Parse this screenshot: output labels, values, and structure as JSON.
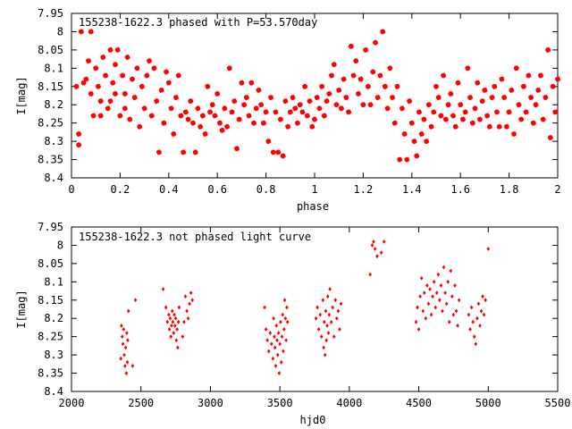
{
  "colors": {
    "points": "#ff0000",
    "axes": "#000000",
    "background": "#ffffff"
  },
  "chart_data": [
    {
      "type": "scatter",
      "title": "155238-1622.3 phased with P=53.570day",
      "xlabel": "phase",
      "ylabel": "I[mag]",
      "xlim": [
        0,
        2
      ],
      "ylim": [
        7.95,
        8.4
      ],
      "y_inverted": true,
      "grid": false,
      "marker": "star",
      "xticks": [
        "0",
        "0.2",
        "0.4",
        "0.6",
        "0.8",
        "1",
        "1.2",
        "1.4",
        "1.6",
        "1.8",
        "2"
      ],
      "yticks": [
        "7.95",
        "8",
        "8.05",
        "8.1",
        "8.15",
        "8.2",
        "8.25",
        "8.3",
        "8.35",
        "8.4"
      ],
      "points": [
        [
          0.02,
          8.15
        ],
        [
          0.03,
          8.28
        ],
        [
          0.03,
          8.31
        ],
        [
          0.04,
          8.0
        ],
        [
          0.05,
          8.14
        ],
        [
          0.06,
          8.13
        ],
        [
          0.07,
          8.08
        ],
        [
          0.08,
          8.0
        ],
        [
          0.08,
          8.17
        ],
        [
          0.09,
          8.23
        ],
        [
          0.1,
          8.1
        ],
        [
          0.11,
          8.15
        ],
        [
          0.12,
          8.19
        ],
        [
          0.12,
          8.23
        ],
        [
          0.13,
          8.07
        ],
        [
          0.14,
          8.12
        ],
        [
          0.15,
          8.21
        ],
        [
          0.16,
          8.05
        ],
        [
          0.16,
          8.19
        ],
        [
          0.17,
          8.14
        ],
        [
          0.18,
          8.17
        ],
        [
          0.18,
          8.09
        ],
        [
          0.19,
          8.05
        ],
        [
          0.2,
          8.23
        ],
        [
          0.21,
          8.12
        ],
        [
          0.22,
          8.21
        ],
        [
          0.22,
          8.17
        ],
        [
          0.23,
          8.07
        ],
        [
          0.24,
          8.24
        ],
        [
          0.25,
          8.13
        ],
        [
          0.26,
          8.18
        ],
        [
          0.27,
          8.1
        ],
        [
          0.28,
          8.26
        ],
        [
          0.29,
          8.15
        ],
        [
          0.3,
          8.21
        ],
        [
          0.31,
          8.12
        ],
        [
          0.32,
          8.08
        ],
        [
          0.33,
          8.23
        ],
        [
          0.34,
          8.1
        ],
        [
          0.35,
          8.19
        ],
        [
          0.36,
          8.33
        ],
        [
          0.37,
          8.16
        ],
        [
          0.38,
          8.25
        ],
        [
          0.39,
          8.11
        ],
        [
          0.4,
          8.14
        ],
        [
          0.41,
          8.21
        ],
        [
          0.42,
          8.28
        ],
        [
          0.43,
          8.18
        ],
        [
          0.44,
          8.12
        ],
        [
          0.45,
          8.23
        ],
        [
          0.46,
          8.33
        ],
        [
          0.47,
          8.22
        ],
        [
          0.48,
          8.24
        ],
        [
          0.49,
          8.19
        ],
        [
          0.5,
          8.25
        ],
        [
          0.51,
          8.33
        ],
        [
          0.52,
          8.21
        ],
        [
          0.53,
          8.26
        ],
        [
          0.54,
          8.23
        ],
        [
          0.55,
          8.28
        ],
        [
          0.56,
          8.15
        ],
        [
          0.57,
          8.22
        ],
        [
          0.58,
          8.2
        ],
        [
          0.59,
          8.23
        ],
        [
          0.6,
          8.17
        ],
        [
          0.61,
          8.25
        ],
        [
          0.62,
          8.27
        ],
        [
          0.63,
          8.21
        ],
        [
          0.64,
          8.26
        ],
        [
          0.65,
          8.1
        ],
        [
          0.66,
          8.22
        ],
        [
          0.67,
          8.19
        ],
        [
          0.68,
          8.32
        ],
        [
          0.69,
          8.24
        ],
        [
          0.7,
          8.14
        ],
        [
          0.71,
          8.2
        ],
        [
          0.72,
          8.18
        ],
        [
          0.73,
          8.23
        ],
        [
          0.74,
          8.14
        ],
        [
          0.75,
          8.25
        ],
        [
          0.76,
          8.21
        ],
        [
          0.77,
          8.16
        ],
        [
          0.78,
          8.2
        ],
        [
          0.79,
          8.25
        ],
        [
          0.8,
          8.22
        ],
        [
          0.81,
          8.3
        ],
        [
          0.82,
          8.18
        ],
        [
          0.83,
          8.33
        ],
        [
          0.84,
          8.22
        ],
        [
          0.85,
          8.33
        ],
        [
          0.86,
          8.24
        ],
        [
          0.87,
          8.34
        ],
        [
          0.88,
          8.19
        ],
        [
          0.89,
          8.26
        ],
        [
          0.9,
          8.22
        ],
        [
          0.91,
          8.18
        ],
        [
          0.92,
          8.21
        ],
        [
          0.93,
          8.25
        ],
        [
          0.94,
          8.2
        ],
        [
          0.95,
          8.22
        ],
        [
          0.96,
          8.15
        ],
        [
          0.97,
          8.23
        ],
        [
          0.98,
          8.19
        ],
        [
          0.99,
          8.26
        ],
        [
          1.0,
          8.24
        ],
        [
          1.01,
          8.18
        ],
        [
          1.02,
          8.21
        ],
        [
          1.03,
          8.15
        ],
        [
          1.04,
          8.23
        ],
        [
          1.05,
          8.19
        ],
        [
          1.06,
          8.17
        ],
        [
          1.07,
          8.12
        ],
        [
          1.08,
          8.09
        ],
        [
          1.09,
          8.2
        ],
        [
          1.1,
          8.16
        ],
        [
          1.11,
          8.21
        ],
        [
          1.12,
          8.13
        ],
        [
          1.13,
          8.18
        ],
        [
          1.14,
          8.22
        ],
        [
          1.15,
          8.04
        ],
        [
          1.16,
          8.12
        ],
        [
          1.17,
          8.08
        ],
        [
          1.18,
          8.17
        ],
        [
          1.19,
          8.13
        ],
        [
          1.2,
          8.2
        ],
        [
          1.21,
          8.05
        ],
        [
          1.22,
          8.15
        ],
        [
          1.23,
          8.2
        ],
        [
          1.24,
          8.11
        ],
        [
          1.25,
          8.03
        ],
        [
          1.26,
          8.18
        ],
        [
          1.27,
          8.12
        ],
        [
          1.28,
          8.0
        ],
        [
          1.29,
          8.15
        ],
        [
          1.3,
          8.21
        ],
        [
          1.31,
          8.1
        ],
        [
          1.32,
          8.18
        ],
        [
          1.33,
          8.25
        ],
        [
          1.34,
          8.15
        ],
        [
          1.35,
          8.35
        ],
        [
          1.36,
          8.21
        ],
        [
          1.37,
          8.28
        ],
        [
          1.38,
          8.35
        ],
        [
          1.39,
          8.19
        ],
        [
          1.4,
          8.25
        ],
        [
          1.41,
          8.3
        ],
        [
          1.42,
          8.34
        ],
        [
          1.43,
          8.22
        ],
        [
          1.44,
          8.28
        ],
        [
          1.45,
          8.24
        ],
        [
          1.46,
          8.3
        ],
        [
          1.47,
          8.2
        ],
        [
          1.48,
          8.26
        ],
        [
          1.49,
          8.22
        ],
        [
          1.5,
          8.15
        ],
        [
          1.51,
          8.18
        ],
        [
          1.52,
          8.23
        ],
        [
          1.53,
          8.12
        ],
        [
          1.54,
          8.24
        ],
        [
          1.55,
          8.2
        ],
        [
          1.56,
          8.17
        ],
        [
          1.57,
          8.23
        ],
        [
          1.58,
          8.26
        ],
        [
          1.59,
          8.14
        ],
        [
          1.6,
          8.2
        ],
        [
          1.61,
          8.24
        ],
        [
          1.62,
          8.22
        ],
        [
          1.63,
          8.1
        ],
        [
          1.64,
          8.18
        ],
        [
          1.65,
          8.25
        ],
        [
          1.66,
          8.21
        ],
        [
          1.67,
          8.14
        ],
        [
          1.68,
          8.24
        ],
        [
          1.69,
          8.19
        ],
        [
          1.7,
          8.16
        ],
        [
          1.71,
          8.23
        ],
        [
          1.72,
          8.26
        ],
        [
          1.73,
          8.18
        ],
        [
          1.74,
          8.15
        ],
        [
          1.75,
          8.22
        ],
        [
          1.76,
          8.26
        ],
        [
          1.77,
          8.13
        ],
        [
          1.78,
          8.18
        ],
        [
          1.79,
          8.26
        ],
        [
          1.8,
          8.22
        ],
        [
          1.81,
          8.16
        ],
        [
          1.82,
          8.28
        ],
        [
          1.83,
          8.1
        ],
        [
          1.84,
          8.2
        ],
        [
          1.85,
          8.24
        ],
        [
          1.86,
          8.15
        ],
        [
          1.87,
          8.22
        ],
        [
          1.88,
          8.12
        ],
        [
          1.89,
          8.18
        ],
        [
          1.9,
          8.25
        ],
        [
          1.91,
          8.2
        ],
        [
          1.92,
          8.16
        ],
        [
          1.93,
          8.12
        ],
        [
          1.94,
          8.24
        ],
        [
          1.95,
          8.18
        ],
        [
          1.96,
          8.05
        ],
        [
          1.97,
          8.29
        ],
        [
          1.98,
          8.15
        ],
        [
          1.99,
          8.22
        ],
        [
          2.0,
          8.13
        ]
      ]
    },
    {
      "type": "scatter",
      "title": "155238-1622.3 not phased light curve",
      "xlabel": "hjd0",
      "ylabel": "I[mag]",
      "xlim": [
        2000,
        5500
      ],
      "ylim": [
        7.95,
        8.4
      ],
      "y_inverted": true,
      "grid": false,
      "marker": "diamond",
      "xticks": [
        "2000",
        "2500",
        "3000",
        "3500",
        "4000",
        "4500",
        "5000",
        "5500"
      ],
      "yticks": [
        "7.95",
        "8",
        "8.05",
        "8.1",
        "8.15",
        "8.2",
        "8.25",
        "8.3",
        "8.35",
        "8.4"
      ],
      "points": [
        [
          2355,
          8.31
        ],
        [
          2360,
          8.22
        ],
        [
          2365,
          8.25
        ],
        [
          2370,
          8.27
        ],
        [
          2375,
          8.23
        ],
        [
          2380,
          8.3
        ],
        [
          2385,
          8.33
        ],
        [
          2390,
          8.28
        ],
        [
          2395,
          8.35
        ],
        [
          2398,
          8.24
        ],
        [
          2402,
          8.32
        ],
        [
          2405,
          8.26
        ],
        [
          2410,
          8.18
        ],
        [
          2440,
          8.33
        ],
        [
          2460,
          8.15
        ],
        [
          2660,
          8.12
        ],
        [
          2680,
          8.17
        ],
        [
          2690,
          8.21
        ],
        [
          2700,
          8.19
        ],
        [
          2705,
          8.23
        ],
        [
          2710,
          8.2
        ],
        [
          2715,
          8.25
        ],
        [
          2720,
          8.22
        ],
        [
          2725,
          8.18
        ],
        [
          2730,
          8.21
        ],
        [
          2735,
          8.24
        ],
        [
          2740,
          8.19
        ],
        [
          2745,
          8.22
        ],
        [
          2750,
          8.2
        ],
        [
          2755,
          8.26
        ],
        [
          2760,
          8.23
        ],
        [
          2765,
          8.28
        ],
        [
          2770,
          8.21
        ],
        [
          2775,
          8.17
        ],
        [
          2800,
          8.25
        ],
        [
          2810,
          8.21
        ],
        [
          2820,
          8.14
        ],
        [
          2830,
          8.18
        ],
        [
          2840,
          8.2
        ],
        [
          2850,
          8.16
        ],
        [
          2860,
          8.13
        ],
        [
          2870,
          8.15
        ],
        [
          3390,
          8.17
        ],
        [
          3400,
          8.23
        ],
        [
          3410,
          8.26
        ],
        [
          3420,
          8.29
        ],
        [
          3430,
          8.24
        ],
        [
          3440,
          8.27
        ],
        [
          3450,
          8.31
        ],
        [
          3455,
          8.2
        ],
        [
          3460,
          8.25
        ],
        [
          3465,
          8.28
        ],
        [
          3470,
          8.33
        ],
        [
          3475,
          8.22
        ],
        [
          3480,
          8.26
        ],
        [
          3485,
          8.3
        ],
        [
          3490,
          8.24
        ],
        [
          3495,
          8.35
        ],
        [
          3500,
          8.27
        ],
        [
          3505,
          8.21
        ],
        [
          3510,
          8.32
        ],
        [
          3515,
          8.25
        ],
        [
          3520,
          8.19
        ],
        [
          3525,
          8.29
        ],
        [
          3530,
          8.23
        ],
        [
          3535,
          8.15
        ],
        [
          3540,
          8.2
        ],
        [
          3545,
          8.26
        ],
        [
          3550,
          8.17
        ],
        [
          3555,
          8.21
        ],
        [
          3760,
          8.2
        ],
        [
          3770,
          8.17
        ],
        [
          3780,
          8.23
        ],
        [
          3790,
          8.19
        ],
        [
          3800,
          8.25
        ],
        [
          3810,
          8.15
        ],
        [
          3815,
          8.28
        ],
        [
          3820,
          8.21
        ],
        [
          3825,
          8.3
        ],
        [
          3830,
          8.18
        ],
        [
          3835,
          8.26
        ],
        [
          3840,
          8.22
        ],
        [
          3845,
          8.14
        ],
        [
          3850,
          8.24
        ],
        [
          3855,
          8.19
        ],
        [
          3860,
          8.12
        ],
        [
          3870,
          8.21
        ],
        [
          3880,
          8.17
        ],
        [
          3890,
          8.25
        ],
        [
          3900,
          8.15
        ],
        [
          3910,
          8.2
        ],
        [
          3920,
          8.18
        ],
        [
          3930,
          8.23
        ],
        [
          3940,
          8.16
        ],
        [
          4150,
          8.08
        ],
        [
          4165,
          8.0
        ],
        [
          4175,
          7.99
        ],
        [
          4185,
          8.01
        ],
        [
          4200,
          8.03
        ],
        [
          4230,
          8.02
        ],
        [
          4250,
          7.99
        ],
        [
          4480,
          8.21
        ],
        [
          4490,
          8.17
        ],
        [
          4500,
          8.23
        ],
        [
          4510,
          8.14
        ],
        [
          4520,
          8.09
        ],
        [
          4530,
          8.18
        ],
        [
          4540,
          8.13
        ],
        [
          4550,
          8.2
        ],
        [
          4560,
          8.11
        ],
        [
          4570,
          8.16
        ],
        [
          4580,
          8.12
        ],
        [
          4590,
          8.19
        ],
        [
          4600,
          8.14
        ],
        [
          4610,
          8.1
        ],
        [
          4620,
          8.17
        ],
        [
          4630,
          8.13
        ],
        [
          4640,
          8.08
        ],
        [
          4650,
          8.15
        ],
        [
          4660,
          8.11
        ],
        [
          4670,
          8.18
        ],
        [
          4680,
          8.06
        ],
        [
          4690,
          8.13
        ],
        [
          4700,
          8.16
        ],
        [
          4710,
          8.1
        ],
        [
          4720,
          8.21
        ],
        [
          4730,
          8.07
        ],
        [
          4740,
          8.14
        ],
        [
          4750,
          8.19
        ],
        [
          4760,
          8.11
        ],
        [
          4770,
          8.18
        ],
        [
          4780,
          8.22
        ],
        [
          4790,
          8.15
        ],
        [
          4860,
          8.19
        ],
        [
          4870,
          8.23
        ],
        [
          4880,
          8.17
        ],
        [
          4890,
          8.21
        ],
        [
          4900,
          8.25
        ],
        [
          4910,
          8.27
        ],
        [
          4920,
          8.2
        ],
        [
          4930,
          8.16
        ],
        [
          4940,
          8.22
        ],
        [
          4950,
          8.18
        ],
        [
          4960,
          8.14
        ],
        [
          4970,
          8.19
        ],
        [
          4980,
          8.15
        ],
        [
          5000,
          8.01
        ]
      ]
    }
  ]
}
